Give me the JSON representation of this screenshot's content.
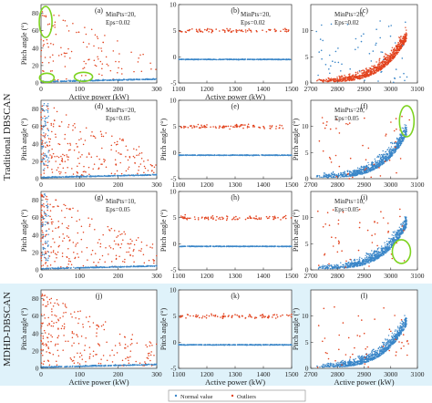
{
  "figure": {
    "rows": [
      {
        "label": "Traditional DBSCAN",
        "row_span": [
          0,
          3
        ]
      },
      {
        "label": "MDHD-DBSCAN",
        "row_span": [
          3,
          4
        ],
        "highlight": true,
        "highlight_color": "#dff2fa"
      }
    ],
    "legend": [
      {
        "label": "Normal value",
        "color": "#3a86c8",
        "marker": "dot"
      },
      {
        "label": "Outliers",
        "color": "#e2431e",
        "marker": "dot"
      }
    ],
    "colors": {
      "normal": "#3a86c8",
      "outlier": "#e2431e",
      "highlight_circle": "#7ed321",
      "axis": "#333333"
    }
  },
  "chart_data": [
    {
      "type": "scatter",
      "panel_label": "(a)",
      "row": 0,
      "col": 0,
      "params": [
        "MinPts=20,",
        "Eps=0.02"
      ],
      "xlabel": "Active power (kW)",
      "ylabel": "Pitch angle (°)",
      "xlim": [
        0,
        300
      ],
      "ylim": [
        0,
        90
      ],
      "xticks": [
        0,
        100,
        200,
        300
      ],
      "yticks": [
        0,
        20,
        40,
        60,
        80
      ],
      "series": [
        {
          "name": "Normal value",
          "band": [
            [
              0,
              1
            ],
            [
              300,
              3
            ]
          ],
          "spread": 2
        },
        {
          "name": "Outliers",
          "region": "scatter-upper-left"
        }
      ],
      "annotations": [
        {
          "type": "ellipse",
          "x": 12,
          "y": 70
        },
        {
          "type": "ellipse",
          "x": 15,
          "y": 6
        },
        {
          "type": "ellipse",
          "x": 110,
          "y": 7
        }
      ]
    },
    {
      "type": "scatter",
      "panel_label": "(b)",
      "row": 0,
      "col": 1,
      "params": [
        "MinPts=20,",
        "Eps=0.02"
      ],
      "xlabel": "Active power (kW)",
      "ylabel": "",
      "xlim": [
        1100,
        1500
      ],
      "ylim": [
        -5,
        10
      ],
      "xticks": [
        1100,
        1200,
        1300,
        1400,
        1500
      ],
      "yticks": [
        -5,
        0,
        5,
        10
      ],
      "series": [
        {
          "name": "Normal value",
          "value": -0.5
        },
        {
          "name": "Outliers",
          "band": [
            4,
            6
          ]
        }
      ]
    },
    {
      "type": "scatter",
      "panel_label": "(c)",
      "row": 0,
      "col": 2,
      "params": [
        "MinPts=20,",
        "Eps=0.02"
      ],
      "xlabel": "",
      "ylabel": "",
      "xlim": [
        2700,
        3100
      ],
      "ylim": [
        0,
        15
      ],
      "xticks": [
        2700,
        2800,
        2900,
        3000,
        3100
      ],
      "yticks": [
        0,
        5,
        10
      ],
      "series": [
        {
          "name": "Normal value"
        },
        {
          "name": "Outliers"
        }
      ]
    },
    {
      "type": "scatter",
      "panel_label": "(d)",
      "row": 1,
      "col": 0,
      "params": [
        "MinPts=20,",
        "Eps=0.05"
      ],
      "xlabel": "",
      "ylabel": "Pitch angle (°)",
      "xlim": [
        0,
        300
      ],
      "ylim": [
        0,
        90
      ],
      "xticks": [
        0,
        100,
        200,
        300
      ],
      "yticks": [
        0,
        20,
        40,
        60,
        80
      ],
      "series": [
        {
          "name": "Normal value"
        },
        {
          "name": "Outliers"
        }
      ]
    },
    {
      "type": "scatter",
      "panel_label": "(e)",
      "row": 1,
      "col": 1,
      "params": [],
      "xlabel": "",
      "ylabel": "Pitch angle (°)",
      "xlim": [
        1100,
        1500
      ],
      "ylim": [
        -5,
        10
      ],
      "xticks": [
        1100,
        1200,
        1300,
        1400,
        1500
      ],
      "yticks": [
        -5,
        0,
        5,
        10
      ],
      "series": [
        {
          "name": "Normal value",
          "value": -0.5
        },
        {
          "name": "Outliers",
          "band": [
            4,
            6
          ]
        }
      ]
    },
    {
      "type": "scatter",
      "panel_label": "(f)",
      "row": 1,
      "col": 2,
      "params": [
        "MinPts=20,",
        "Eps=0.05"
      ],
      "xlabel": "",
      "ylabel": "Pitch angle (°)",
      "xlim": [
        2700,
        3100
      ],
      "ylim": [
        0,
        15
      ],
      "xticks": [
        2700,
        2800,
        2900,
        3000,
        3100
      ],
      "yticks": [
        0,
        5,
        10
      ],
      "series": [
        {
          "name": "Normal value"
        },
        {
          "name": "Outliers"
        }
      ],
      "annotations": [
        {
          "type": "ellipse",
          "x": 3060,
          "y": 11
        }
      ]
    },
    {
      "type": "scatter",
      "panel_label": "(g)",
      "row": 2,
      "col": 0,
      "params": [
        "MinPts=10,",
        "Eps=0.05"
      ],
      "xlabel": "",
      "ylabel": "Pitch angle (°)",
      "xlim": [
        0,
        300
      ],
      "ylim": [
        0,
        90
      ],
      "xticks": [
        0,
        100,
        200,
        300
      ],
      "yticks": [
        0,
        20,
        40,
        60,
        80
      ],
      "series": [
        {
          "name": "Normal value"
        },
        {
          "name": "Outliers"
        }
      ]
    },
    {
      "type": "scatter",
      "panel_label": "(h)",
      "row": 2,
      "col": 1,
      "params": [],
      "xlabel": "",
      "ylabel": "Pitch angle (°)",
      "xlim": [
        1100,
        1500
      ],
      "ylim": [
        -5,
        10
      ],
      "xticks": [
        1100,
        1200,
        1300,
        1400,
        1500
      ],
      "yticks": [
        -5,
        0,
        5,
        10
      ],
      "series": [
        {
          "name": "Normal value",
          "value": -0.5
        },
        {
          "name": "Outliers",
          "band": [
            4,
            6
          ]
        }
      ]
    },
    {
      "type": "scatter",
      "panel_label": "(i)",
      "row": 2,
      "col": 2,
      "params": [
        "MinPts=10,",
        "Eps=0.05"
      ],
      "xlabel": "",
      "ylabel": "Pitch angle (°)",
      "xlim": [
        2700,
        3100
      ],
      "ylim": [
        0,
        15
      ],
      "xticks": [
        2700,
        2800,
        2900,
        3000,
        3100
      ],
      "yticks": [
        0,
        5,
        10
      ],
      "series": [
        {
          "name": "Normal value"
        },
        {
          "name": "Outliers"
        }
      ],
      "annotations": [
        {
          "type": "ellipse",
          "x": 3040,
          "y": 3.5
        }
      ]
    },
    {
      "type": "scatter",
      "panel_label": "(j)",
      "row": 3,
      "col": 0,
      "params": [],
      "xlabel": "Active power (kW)",
      "ylabel": "Pitch angle (°)",
      "xlim": [
        0,
        300
      ],
      "ylim": [
        0,
        90
      ],
      "xticks": [
        0,
        100,
        200,
        300
      ],
      "yticks": [
        0,
        20,
        40,
        60,
        80
      ],
      "series": [
        {
          "name": "Normal value"
        },
        {
          "name": "Outliers"
        }
      ]
    },
    {
      "type": "scatter",
      "panel_label": "(k)",
      "row": 3,
      "col": 1,
      "params": [],
      "xlabel": "Active power (kW)",
      "ylabel": "Pitch angle (°)",
      "xlim": [
        1100,
        1500
      ],
      "ylim": [
        -5,
        10
      ],
      "xticks": [
        1100,
        1200,
        1300,
        1400,
        1500
      ],
      "yticks": [
        -5,
        0,
        5,
        10
      ],
      "series": [
        {
          "name": "Normal value",
          "value": -0.5
        },
        {
          "name": "Outliers",
          "band": [
            4,
            6
          ]
        }
      ]
    },
    {
      "type": "scatter",
      "panel_label": "(l)",
      "row": 3,
      "col": 2,
      "params": [],
      "xlabel": "Active power (kW)",
      "ylabel": "Pitch angle (°)",
      "xlim": [
        2700,
        3100
      ],
      "ylim": [
        0,
        15
      ],
      "xticks": [
        2700,
        2800,
        2900,
        3000,
        3100
      ],
      "yticks": [
        0,
        5,
        10
      ],
      "series": [
        {
          "name": "Normal value"
        },
        {
          "name": "Outliers"
        }
      ]
    }
  ]
}
